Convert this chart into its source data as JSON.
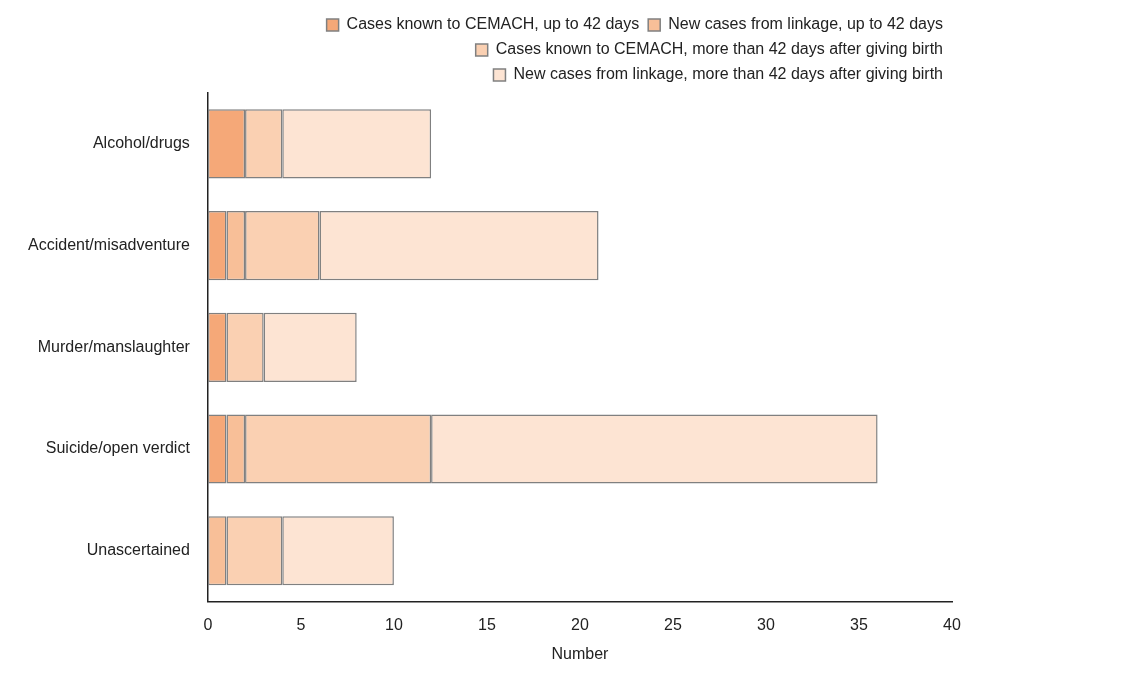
{
  "chart_data": {
    "type": "bar",
    "orientation": "horizontal",
    "stacked": true,
    "xlabel": "Number",
    "categories": [
      "Alcohol/drugs",
      "Accident/misadventure",
      "Murder/manslaughter",
      "Suicide/open verdict",
      "Unascertained"
    ],
    "series": [
      {
        "name": "Cases known to CEMACH, up to 42 days",
        "color": "#f5a878",
        "values": [
          2,
          1,
          1,
          1,
          0
        ]
      },
      {
        "name": "New cases from linkage, up to 42 days",
        "color": "#f8bf98",
        "values": [
          0,
          1,
          0,
          1,
          1
        ]
      },
      {
        "name": "Cases known to CEMACH, more than 42 days after giving birth",
        "color": "#fad0b2",
        "values": [
          2,
          4,
          2,
          10,
          3
        ]
      },
      {
        "name": "New cases from linkage, more than 42 days after giving birth",
        "color": "#fde4d3",
        "values": [
          8,
          15,
          5,
          24,
          6
        ]
      }
    ],
    "xlim": [
      0,
      40
    ],
    "xticks": [
      0,
      5,
      10,
      15,
      20,
      25,
      30,
      35,
      40
    ],
    "grid": false,
    "legend": "top right"
  }
}
